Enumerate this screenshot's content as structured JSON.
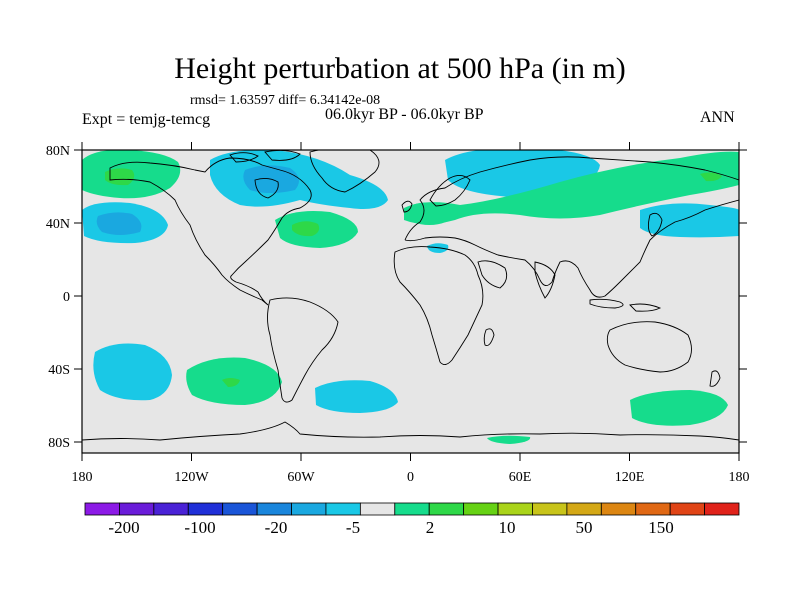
{
  "title": "Height perturbation at 500 hPa (in m)",
  "rmsd_line": "rmsd= 1.63597 diff= 6.34142e-08",
  "period": "06.0kyr BP - 06.0kyr BP",
  "expt": "Expt = temjg-temcg",
  "season": "ANN",
  "x_ticks": [
    "180",
    "120W",
    "60W",
    "0",
    "60E",
    "120E",
    "180"
  ],
  "y_ticks": [
    "80N",
    "40N",
    "0",
    "40S",
    "80S"
  ],
  "colorbar": {
    "colors": [
      "#8c1ae6",
      "#6a1cd9",
      "#4a22d6",
      "#2030d8",
      "#1a55d8",
      "#1a86dc",
      "#1aa8e0",
      "#1ac8e6",
      "#e6e6e6",
      "#16dc8c",
      "#2ed848",
      "#66d214",
      "#aad41a",
      "#c8c41a",
      "#d4a816",
      "#dc8612",
      "#e06814",
      "#e04416",
      "#e0221a"
    ],
    "labels": [
      "-200",
      "-100",
      "-20",
      "-5",
      "2",
      "10",
      "50",
      "150"
    ]
  }
}
